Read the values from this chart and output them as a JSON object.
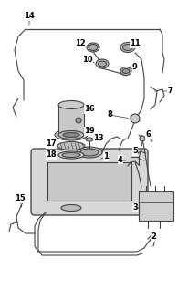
{
  "background_color": "#ffffff",
  "fig_width": 2.06,
  "fig_height": 3.17,
  "dpi": 100,
  "line_color": "#444444",
  "line_width": 0.8,
  "label_fontsize": 6.0
}
